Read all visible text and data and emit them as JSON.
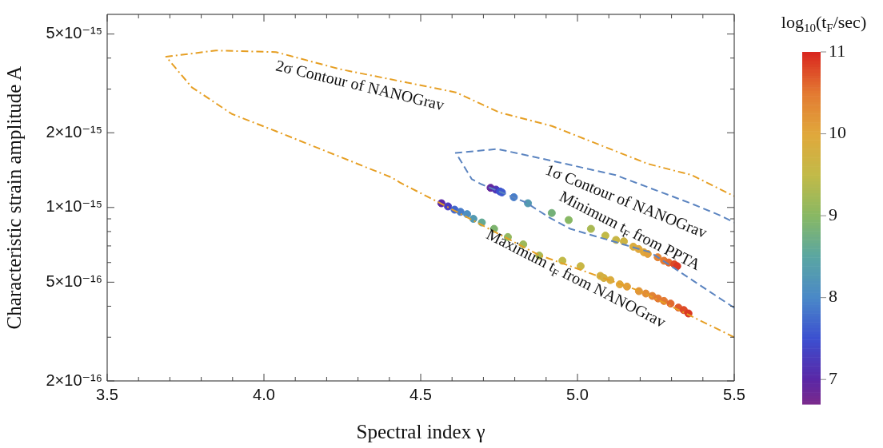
{
  "chart_data": {
    "type": "line",
    "xlabel": "Spectral index γ",
    "ylabel": "Characteristic strain amplitude A",
    "clabel": "log$_{10}$(t$_{F}$/sec)",
    "log": "y",
    "legend": false,
    "xlim": [
      3.5,
      5.5
    ],
    "xticks": [
      3.5,
      {
        "value": 3.6,
        "label": null
      },
      {
        "value": 3.7,
        "label": null
      },
      {
        "value": 3.8,
        "label": null
      },
      {
        "value": 3.9,
        "label": null
      },
      {
        "value": 4,
        "label": "4.0"
      },
      {
        "value": 4.1,
        "label": null
      },
      {
        "value": 4.2,
        "label": null
      },
      {
        "value": 4.3,
        "label": null
      },
      {
        "value": 4.4,
        "label": null
      },
      4.5,
      {
        "value": 4.6,
        "label": null
      },
      {
        "value": 4.7,
        "label": null
      },
      {
        "value": 4.8,
        "label": null
      },
      {
        "value": 4.9,
        "label": null
      },
      {
        "value": 5,
        "label": "5.0"
      },
      {
        "value": 5.1,
        "label": null
      },
      {
        "value": 5.2,
        "label": null
      },
      {
        "value": 5.3,
        "label": null
      },
      {
        "value": 5.4,
        "label": null
      },
      5.5
    ],
    "ylim": [
      2e-16,
      6e-15
    ],
    "yticks": [
      {
        "value": 2e-16,
        "label": "2×10⁻¹⁶"
      },
      {
        "value": 3e-16,
        "label": null
      },
      {
        "value": 4e-16,
        "label": null
      },
      {
        "value": 5e-16,
        "label": "5×10⁻¹⁶"
      },
      {
        "value": 6e-16,
        "label": null
      },
      {
        "value": 7e-16,
        "label": null
      },
      {
        "value": 8e-16,
        "label": null
      },
      {
        "value": 9e-16,
        "label": null
      },
      {
        "value": 1e-15,
        "label": "1×10⁻¹⁵"
      },
      {
        "value": 2e-15,
        "label": "2×10⁻¹⁵"
      },
      {
        "value": 3e-15,
        "label": null
      },
      {
        "value": 4e-15,
        "label": null
      },
      {
        "value": 5e-15,
        "label": "5×10⁻¹⁵"
      }
    ],
    "clim": [
      6.7,
      11
    ],
    "cticks": [
      7,
      8,
      9,
      10,
      11
    ],
    "series": [
      {
        "color": "#e69f24",
        "line_style": "dashdot",
        "x": [
          5.5,
          5.2,
          4.875,
          4.566,
          4.434,
          4.408,
          4.038,
          3.898,
          3.77,
          3.688,
          3.847,
          4.038,
          4.242,
          4.612,
          4.753,
          4.918,
          5.224,
          5.365,
          5.5
        ],
        "values": [
          3e-16,
          4.6e-16,
          6.45e-16,
          1.035e-15,
          1.26e-15,
          1.32e-15,
          2.03e-15,
          2.38e-15,
          3.05e-15,
          4.05e-15,
          4.29e-15,
          4.23e-15,
          3.61e-15,
          2.91e-15,
          2.41e-15,
          2.13e-15,
          1.5e-15,
          1.35e-15,
          1.11e-15
        ]
      },
      {
        "color": "#5b84c0",
        "line_style": "dashed",
        "x": [
          5.5,
          5.232,
          4.977,
          4.911,
          4.834,
          4.694,
          4.663,
          4.612,
          4.745,
          4.931,
          5.122,
          5.365,
          5.454,
          5.5
        ],
        "values": [
          3.94e-16,
          6.6e-16,
          8.2e-16,
          9.1e-16,
          1.05e-15,
          1.24e-15,
          1.3e-15,
          1.66e-15,
          1.72e-15,
          1.53e-15,
          1.35e-15,
          1.035e-15,
          9.3e-16,
          8.7e-16
        ]
      },
      {
        "type": "scatter",
        "marker": "circle",
        "x": [
          4.723,
          4.74,
          4.753,
          4.759,
          4.797,
          4.842,
          4.918,
          4.972,
          5.043,
          5.089,
          5.123,
          5.148,
          5.178,
          5.195,
          5.212,
          5.224,
          5.256,
          5.276,
          5.291,
          5.309,
          5.318
        ],
        "values": [
          1.2e-15,
          1.18e-15,
          1.16e-15,
          1.15e-15,
          1.1e-15,
          1.04e-15,
          9.5e-16,
          8.9e-16,
          8.2e-16,
          7.7e-16,
          7.4e-16,
          7.3e-16,
          6.95e-16,
          6.8e-16,
          6.6e-16,
          6.5e-16,
          6.3e-16,
          6.1e-16,
          6e-16,
          5.9e-16,
          5.8e-16
        ],
        "cvalues": [
          6.9,
          7.2,
          7.5,
          7.6,
          7.9,
          8.3,
          8.8,
          9.0,
          9.3,
          9.5,
          9.6,
          9.7,
          9.9,
          10.0,
          10.0,
          10.1,
          10.4,
          10.5,
          10.6,
          10.8,
          10.9
        ],
        "colors": [
          "#6328a0",
          "#4e35b8",
          "#3c4fd0",
          "#3e5ace",
          "#477dc9",
          "#5399b1",
          "#74b079",
          "#88b864",
          "#a9b954",
          "#c2ba48",
          "#c8b745",
          "#cdb443",
          "#daac3e",
          "#e0a83c",
          "#e0a83c",
          "#e1a03a",
          "#e28334",
          "#e37a32",
          "#e16a2f",
          "#de4a27",
          "#db3823"
        ]
      },
      {
        "type": "scatter",
        "marker": "circle",
        "x": [
          4.566,
          4.587,
          4.608,
          4.627,
          4.648,
          4.668,
          4.695,
          4.734,
          4.778,
          4.827,
          4.878,
          4.952,
          5.01,
          5.073,
          5.084,
          5.105,
          5.135,
          5.158,
          5.196,
          5.218,
          5.239,
          5.257,
          5.276,
          5.297,
          5.322,
          5.339,
          5.354
        ],
        "values": [
          1.04e-15,
          1.01e-15,
          9.8e-16,
          9.6e-16,
          9.4e-16,
          9e-16,
          8.7e-16,
          8.2e-16,
          7.6e-16,
          7.1e-16,
          6.4e-16,
          6.1e-16,
          5.8e-16,
          5.3e-16,
          5.2e-16,
          5.1e-16,
          4.9e-16,
          4.8e-16,
          4.6e-16,
          4.5e-16,
          4.4e-16,
          4.3e-16,
          4.2e-16,
          4.1e-16,
          3.95e-16,
          3.86e-16,
          3.74e-16
        ],
        "cvalues": [
          7.0,
          7.3,
          7.7,
          7.9,
          8.1,
          8.3,
          8.6,
          8.9,
          9.1,
          9.2,
          9.3,
          9.5,
          9.6,
          9.8,
          9.8,
          9.9,
          10.0,
          10.1,
          10.2,
          10.3,
          10.4,
          10.5,
          10.5,
          10.6,
          10.7,
          10.8,
          10.9
        ],
        "colors": [
          "#5a27a6",
          "#483bbf",
          "#4166cc",
          "#477dc9",
          "#4d8ec0",
          "#5399b1",
          "#64a993",
          "#7db46e",
          "#93b95f",
          "#9eb959",
          "#a9b954",
          "#c2ba48",
          "#c8b745",
          "#d3b041",
          "#d3b041",
          "#daac3e",
          "#e0a83c",
          "#e1a03a",
          "#e19638",
          "#e28d36",
          "#e28334",
          "#e37a32",
          "#e37a32",
          "#e16a2f",
          "#df5a2b",
          "#de4a27",
          "#db3823"
        ]
      }
    ],
    "annotations": [
      "2σ Contour of NANOGrav",
      "1σ Contour of NANOGrav",
      "Minimum t$_{F}$ from PPTA",
      "Maximum t$_{F}$ from NANOGrav"
    ]
  }
}
